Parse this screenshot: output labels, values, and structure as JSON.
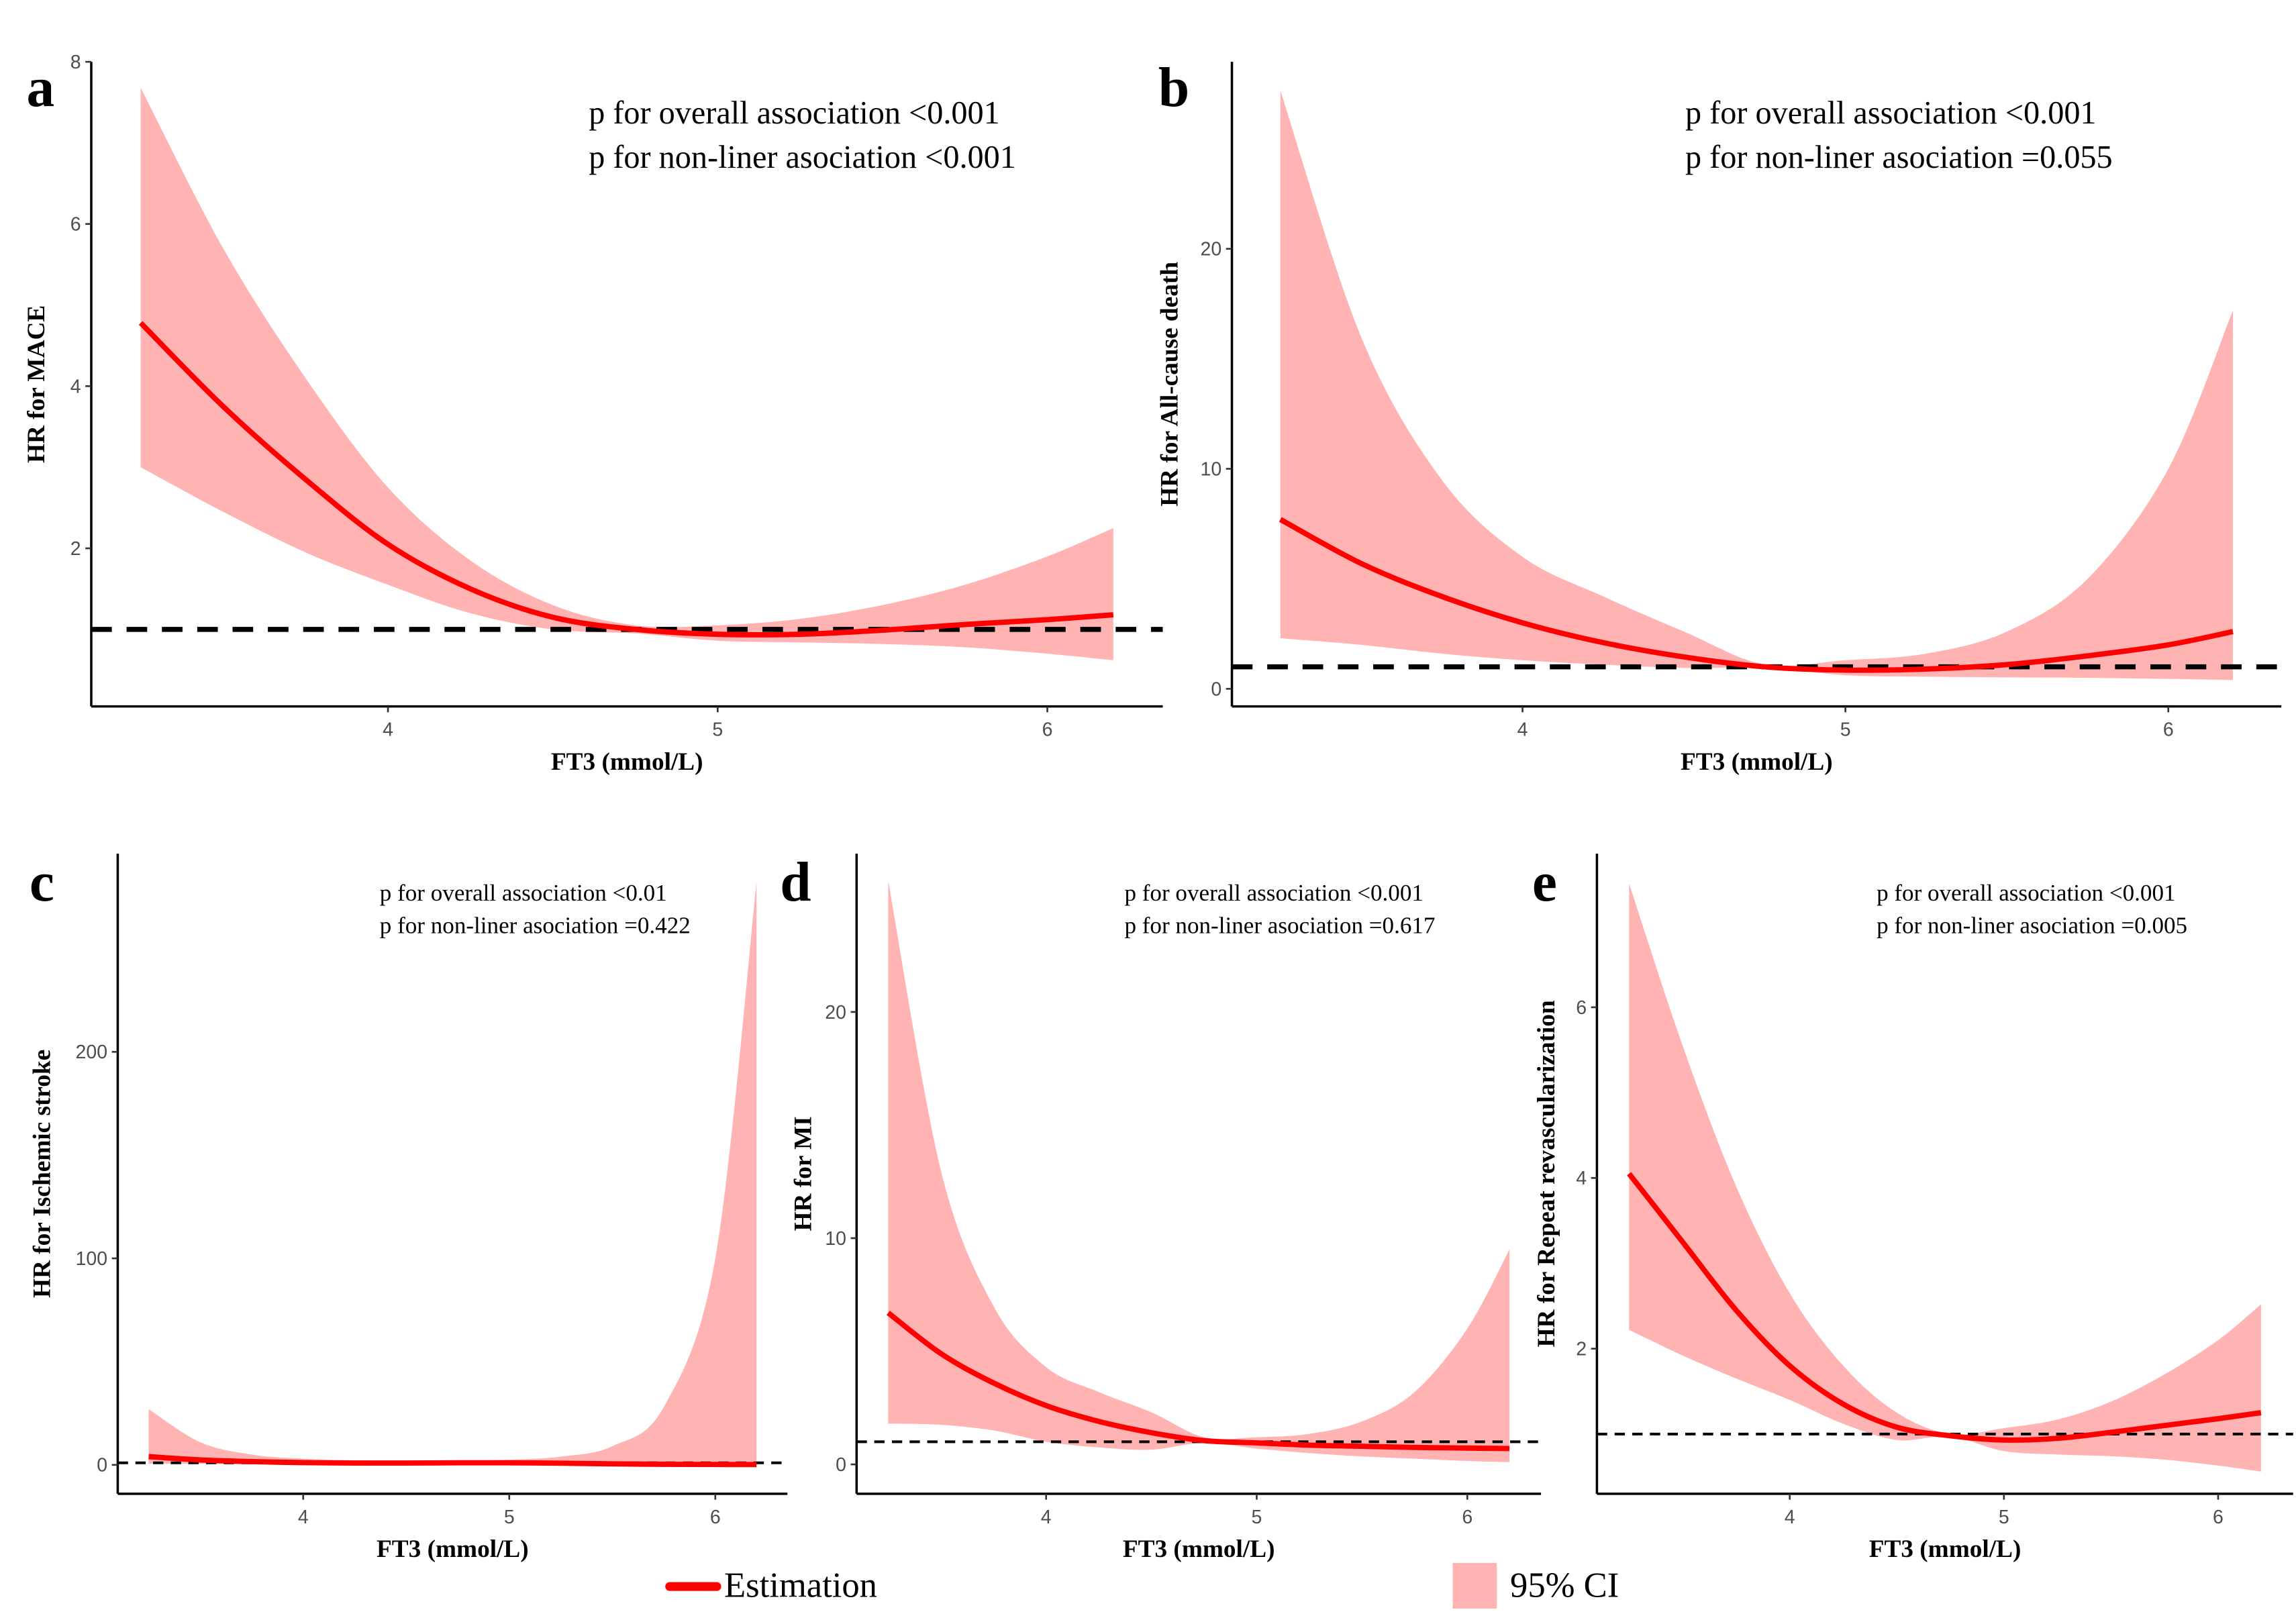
{
  "figure": {
    "legend": {
      "estimation_label": "Estimation",
      "ci_label": "95% CI",
      "line_color": "#ff0000",
      "ci_color": "#ffb3b3"
    },
    "reference_line_hr": 1
  },
  "chart_data": [
    {
      "type": "line",
      "panel": "a",
      "title": "",
      "xlabel": "FT3 (mmol/L)",
      "ylabel": "HR for MACE",
      "xlim": [
        3.1,
        6.35
      ],
      "ylim": [
        0.05,
        8
      ],
      "xticks": [
        4,
        5,
        6
      ],
      "yticks": [
        2,
        4,
        6,
        8
      ],
      "annotations": [
        "p for overall association <0.001",
        "p for non-liner asociation <0.001"
      ],
      "series": [
        {
          "name": "Estimation",
          "x": [
            3.25,
            3.5,
            3.75,
            4.0,
            4.25,
            4.5,
            4.75,
            5.0,
            5.25,
            5.5,
            5.75,
            6.0,
            6.2
          ],
          "values": [
            4.78,
            3.75,
            2.85,
            2.05,
            1.5,
            1.15,
            1.0,
            0.94,
            0.94,
            0.99,
            1.06,
            1.12,
            1.18
          ]
        },
        {
          "name": "95% CI lower",
          "x": [
            3.25,
            3.5,
            3.75,
            4.0,
            4.25,
            4.5,
            4.75,
            5.0,
            5.25,
            5.5,
            5.75,
            6.0,
            6.2
          ],
          "values": [
            3.0,
            2.45,
            1.95,
            1.55,
            1.2,
            1.0,
            0.95,
            0.86,
            0.84,
            0.82,
            0.78,
            0.7,
            0.62
          ]
        },
        {
          "name": "95% CI upper",
          "x": [
            3.25,
            3.5,
            3.75,
            4.0,
            4.25,
            4.5,
            4.75,
            5.0,
            5.25,
            5.5,
            5.75,
            6.0,
            6.2
          ],
          "values": [
            7.68,
            5.7,
            4.1,
            2.75,
            1.85,
            1.3,
            1.05,
            1.05,
            1.13,
            1.3,
            1.55,
            1.9,
            2.25
          ]
        }
      ],
      "grid": false
    },
    {
      "type": "line",
      "panel": "b",
      "title": "",
      "xlabel": "FT3 (mmol/L)",
      "ylabel": "HR for All-cause death",
      "xlim": [
        3.1,
        6.35
      ],
      "ylim": [
        -0.8,
        28.5
      ],
      "xticks": [
        4,
        5,
        6
      ],
      "yticks": [
        0,
        10,
        20
      ],
      "annotations": [
        "p for overall association <0.001",
        "p for non-liner asociation =0.055"
      ],
      "series": [
        {
          "name": "Estimation",
          "x": [
            3.25,
            3.5,
            3.75,
            4.0,
            4.25,
            4.5,
            4.75,
            5.0,
            5.25,
            5.5,
            5.75,
            6.0,
            6.2
          ],
          "values": [
            7.7,
            5.7,
            4.2,
            3.0,
            2.1,
            1.45,
            1.0,
            0.85,
            0.9,
            1.1,
            1.5,
            2.0,
            2.6
          ]
        },
        {
          "name": "95% CI lower",
          "x": [
            3.25,
            3.5,
            3.75,
            4.0,
            4.25,
            4.5,
            4.75,
            5.0,
            5.25,
            5.5,
            5.75,
            6.0,
            6.2
          ],
          "values": [
            2.3,
            2.0,
            1.6,
            1.3,
            1.1,
            0.95,
            0.95,
            0.62,
            0.55,
            0.52,
            0.5,
            0.45,
            0.4
          ]
        },
        {
          "name": "95% CI upper",
          "x": [
            3.25,
            3.5,
            3.75,
            4.0,
            4.25,
            4.5,
            4.75,
            5.0,
            5.25,
            5.5,
            5.75,
            6.0,
            6.2
          ],
          "values": [
            27.2,
            16.0,
            9.5,
            6.0,
            4.2,
            2.6,
            1.1,
            1.3,
            1.6,
            2.6,
            5.0,
            10.0,
            17.2
          ]
        }
      ],
      "grid": false
    },
    {
      "type": "line",
      "panel": "c",
      "title": "",
      "xlabel": "FT3 (mmol/L)",
      "ylabel": "HR for Ischemic stroke",
      "xlim": [
        3.1,
        6.35
      ],
      "ylim": [
        -14,
        296
      ],
      "xticks": [
        4,
        5,
        6
      ],
      "yticks": [
        0,
        100,
        200
      ],
      "annotations": [
        "p for overall association <0.01",
        "p for non-liner asociation =0.422"
      ],
      "series": [
        {
          "name": "Estimation",
          "x": [
            3.25,
            3.5,
            3.75,
            4.0,
            4.25,
            4.5,
            4.75,
            5.0,
            5.25,
            5.5,
            5.75,
            6.0,
            6.2
          ],
          "values": [
            4.0,
            2.4,
            1.6,
            1.1,
            0.9,
            0.9,
            1.0,
            1.0,
            0.8,
            0.5,
            0.3,
            0.2,
            0.15
          ]
        },
        {
          "name": "95% CI lower",
          "x": [
            3.25,
            3.5,
            3.75,
            4.0,
            4.25,
            4.5,
            4.75,
            5.0,
            5.25,
            5.5,
            5.75,
            6.0,
            6.2
          ],
          "values": [
            0.6,
            0.5,
            0.4,
            0.4,
            0.5,
            0.5,
            0.5,
            0.4,
            0.2,
            0.05,
            0.0,
            0.0,
            0.0
          ]
        },
        {
          "name": "95% CI upper",
          "x": [
            3.25,
            3.5,
            3.75,
            4.0,
            4.25,
            4.5,
            4.75,
            5.0,
            5.25,
            5.5,
            5.75,
            6.0,
            6.2
          ],
          "values": [
            27.0,
            11.0,
            5.0,
            3.0,
            2.2,
            2.0,
            2.2,
            2.5,
            4.0,
            9.0,
            28.0,
            100.0,
            282.0
          ]
        }
      ],
      "grid": false
    },
    {
      "type": "line",
      "panel": "d",
      "title": "",
      "xlabel": "FT3 (mmol/L)",
      "ylabel": "HR for MI",
      "xlim": [
        3.1,
        6.35
      ],
      "ylim": [
        -1.3,
        27.0
      ],
      "xticks": [
        4,
        5,
        6
      ],
      "yticks": [
        0,
        10,
        20
      ],
      "annotations": [
        "p for overall association <0.001",
        "p for non-liner asociation =0.617"
      ],
      "series": [
        {
          "name": "Estimation",
          "x": [
            3.25,
            3.5,
            3.75,
            4.0,
            4.25,
            4.5,
            4.75,
            5.0,
            5.25,
            5.5,
            5.75,
            6.0,
            6.2
          ],
          "values": [
            6.7,
            4.9,
            3.6,
            2.6,
            1.9,
            1.4,
            1.05,
            0.95,
            0.85,
            0.8,
            0.75,
            0.72,
            0.7
          ]
        },
        {
          "name": "95% CI lower",
          "x": [
            3.25,
            3.5,
            3.75,
            4.0,
            4.25,
            4.5,
            4.75,
            5.0,
            5.25,
            5.5,
            5.75,
            6.0,
            6.2
          ],
          "values": [
            1.8,
            1.75,
            1.5,
            1.0,
            0.75,
            0.65,
            0.95,
            0.7,
            0.5,
            0.35,
            0.25,
            0.15,
            0.1
          ]
        },
        {
          "name": "95% CI upper",
          "x": [
            3.25,
            3.5,
            3.75,
            4.0,
            4.25,
            4.5,
            4.75,
            5.0,
            5.25,
            5.5,
            5.75,
            6.0,
            6.2
          ],
          "values": [
            25.8,
            13.0,
            7.0,
            4.3,
            3.2,
            2.3,
            1.2,
            1.2,
            1.35,
            1.9,
            3.2,
            6.0,
            9.5
          ]
        }
      ],
      "grid": false
    },
    {
      "type": "line",
      "panel": "e",
      "title": "",
      "xlabel": "FT3 (mmol/L)",
      "ylabel": "HR for Repeat revascularization",
      "xlim": [
        3.1,
        6.35
      ],
      "ylim": [
        0.3,
        7.8
      ],
      "xticks": [
        4,
        5,
        6
      ],
      "yticks": [
        2,
        4,
        6
      ],
      "annotations": [
        "p for overall association <0.001",
        "p for non-liner asociation =0.005"
      ],
      "series": [
        {
          "name": "Estimation",
          "x": [
            3.25,
            3.5,
            3.75,
            4.0,
            4.25,
            4.5,
            4.75,
            5.0,
            5.25,
            5.5,
            5.75,
            6.0,
            6.2
          ],
          "values": [
            4.05,
            3.25,
            2.45,
            1.8,
            1.35,
            1.08,
            0.98,
            0.93,
            0.95,
            1.02,
            1.1,
            1.18,
            1.25
          ]
        },
        {
          "name": "95% CI lower",
          "x": [
            3.25,
            3.5,
            3.75,
            4.0,
            4.25,
            4.5,
            4.75,
            5.0,
            5.25,
            5.5,
            5.75,
            6.0,
            6.2
          ],
          "values": [
            2.22,
            1.92,
            1.65,
            1.4,
            1.12,
            0.93,
            0.97,
            0.8,
            0.76,
            0.74,
            0.7,
            0.63,
            0.56
          ]
        },
        {
          "name": "95% CI upper",
          "x": [
            3.25,
            3.5,
            3.75,
            4.0,
            4.25,
            4.5,
            4.75,
            5.0,
            5.25,
            5.5,
            5.75,
            6.0,
            6.2
          ],
          "values": [
            7.45,
            5.55,
            3.9,
            2.65,
            1.8,
            1.25,
            1.0,
            1.07,
            1.17,
            1.38,
            1.7,
            2.1,
            2.52
          ]
        }
      ],
      "grid": false
    }
  ]
}
